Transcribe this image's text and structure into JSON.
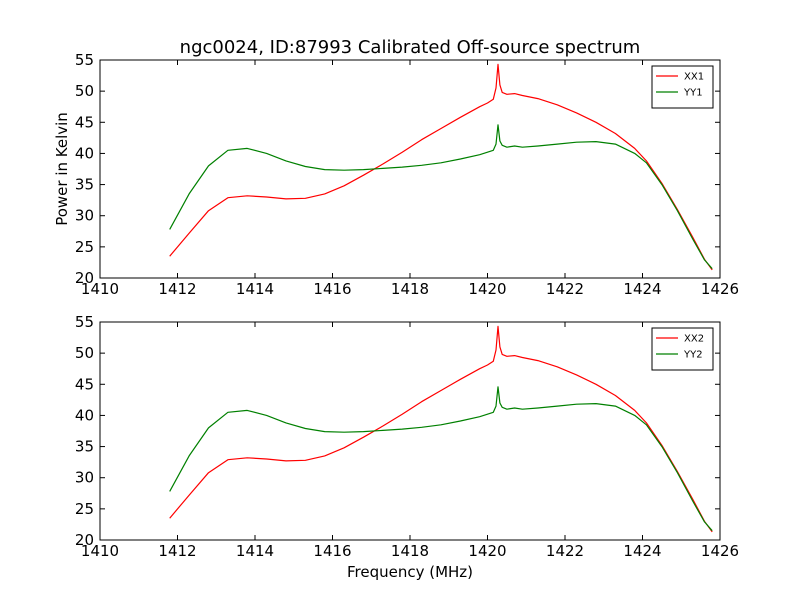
{
  "figure": {
    "title": "ngc0024, ID:87993 Calibrated Off-source spectrum",
    "ylabel_top": "Power in Kelvin",
    "xlabel_bottom": "Frequency (MHz)"
  },
  "chart_data": [
    {
      "type": "line",
      "title": "ngc0024, ID:87993 Calibrated Off-source spectrum",
      "xlabel": "",
      "ylabel": "Power in Kelvin",
      "xlim": [
        1410,
        1426
      ],
      "ylim": [
        20,
        55
      ],
      "xticks": [
        1410,
        1412,
        1414,
        1416,
        1418,
        1420,
        1422,
        1424,
        1426
      ],
      "yticks": [
        20,
        25,
        30,
        35,
        40,
        45,
        50,
        55
      ],
      "grid": false,
      "legend_position": "top-right",
      "series": [
        {
          "name": "XX1",
          "color": "#ff0000",
          "x": [
            1411.8,
            1412.3,
            1412.8,
            1413.3,
            1413.8,
            1414.3,
            1414.8,
            1415.3,
            1415.8,
            1416.3,
            1416.8,
            1417.3,
            1417.8,
            1418.3,
            1418.8,
            1419.3,
            1419.8,
            1420.0,
            1420.15,
            1420.22,
            1420.27,
            1420.32,
            1420.38,
            1420.5,
            1420.7,
            1420.9,
            1421.3,
            1421.8,
            1422.3,
            1422.8,
            1423.3,
            1423.8,
            1424.1,
            1424.5,
            1424.9,
            1425.3,
            1425.6,
            1425.8
          ],
          "y": [
            23.5,
            27.2,
            30.8,
            32.9,
            33.2,
            33.0,
            32.7,
            32.8,
            33.5,
            34.8,
            36.5,
            38.3,
            40.2,
            42.2,
            44.0,
            45.8,
            47.5,
            48.1,
            48.7,
            50.5,
            54.3,
            51.0,
            49.8,
            49.5,
            49.6,
            49.3,
            48.8,
            47.8,
            46.5,
            45.0,
            43.2,
            40.8,
            38.8,
            35.2,
            31.0,
            26.5,
            23.0,
            21.3
          ]
        },
        {
          "name": "YY1",
          "color": "#008000",
          "x": [
            1411.8,
            1412.3,
            1412.8,
            1413.3,
            1413.8,
            1414.3,
            1414.8,
            1415.3,
            1415.8,
            1416.3,
            1416.8,
            1417.3,
            1417.8,
            1418.3,
            1418.8,
            1419.3,
            1419.8,
            1420.0,
            1420.15,
            1420.22,
            1420.27,
            1420.32,
            1420.38,
            1420.5,
            1420.7,
            1420.9,
            1421.3,
            1421.8,
            1422.3,
            1422.8,
            1423.3,
            1423.8,
            1424.1,
            1424.5,
            1424.9,
            1425.3,
            1425.6,
            1425.8
          ],
          "y": [
            27.8,
            33.5,
            38.0,
            40.5,
            40.8,
            40.0,
            38.8,
            37.9,
            37.4,
            37.3,
            37.4,
            37.6,
            37.8,
            38.1,
            38.5,
            39.1,
            39.8,
            40.2,
            40.5,
            41.5,
            44.6,
            42.0,
            41.3,
            41.0,
            41.2,
            41.0,
            41.2,
            41.5,
            41.8,
            41.9,
            41.5,
            40.0,
            38.5,
            35.0,
            30.8,
            26.2,
            22.9,
            21.5
          ]
        }
      ]
    },
    {
      "type": "line",
      "title": "",
      "xlabel": "Frequency (MHz)",
      "ylabel": "",
      "xlim": [
        1410,
        1426
      ],
      "ylim": [
        20,
        55
      ],
      "xticks": [
        1410,
        1412,
        1414,
        1416,
        1418,
        1420,
        1422,
        1424,
        1426
      ],
      "yticks": [
        20,
        25,
        30,
        35,
        40,
        45,
        50,
        55
      ],
      "grid": false,
      "legend_position": "top-right",
      "series": [
        {
          "name": "XX2",
          "color": "#ff0000",
          "x": [
            1411.8,
            1412.3,
            1412.8,
            1413.3,
            1413.8,
            1414.3,
            1414.8,
            1415.3,
            1415.8,
            1416.3,
            1416.8,
            1417.3,
            1417.8,
            1418.3,
            1418.8,
            1419.3,
            1419.8,
            1420.0,
            1420.15,
            1420.22,
            1420.27,
            1420.32,
            1420.38,
            1420.5,
            1420.7,
            1420.9,
            1421.3,
            1421.8,
            1422.3,
            1422.8,
            1423.3,
            1423.8,
            1424.1,
            1424.5,
            1424.9,
            1425.3,
            1425.6,
            1425.8
          ],
          "y": [
            23.5,
            27.2,
            30.8,
            32.9,
            33.2,
            33.0,
            32.7,
            32.8,
            33.5,
            34.8,
            36.5,
            38.3,
            40.2,
            42.2,
            44.0,
            45.8,
            47.5,
            48.1,
            48.7,
            50.5,
            54.3,
            51.0,
            49.8,
            49.5,
            49.6,
            49.3,
            48.8,
            47.8,
            46.5,
            45.0,
            43.2,
            40.8,
            38.8,
            35.2,
            31.0,
            26.5,
            23.0,
            21.3
          ]
        },
        {
          "name": "YY2",
          "color": "#008000",
          "x": [
            1411.8,
            1412.3,
            1412.8,
            1413.3,
            1413.8,
            1414.3,
            1414.8,
            1415.3,
            1415.8,
            1416.3,
            1416.8,
            1417.3,
            1417.8,
            1418.3,
            1418.8,
            1419.3,
            1419.8,
            1420.0,
            1420.15,
            1420.22,
            1420.27,
            1420.32,
            1420.38,
            1420.5,
            1420.7,
            1420.9,
            1421.3,
            1421.8,
            1422.3,
            1422.8,
            1423.3,
            1423.8,
            1424.1,
            1424.5,
            1424.9,
            1425.3,
            1425.6,
            1425.8
          ],
          "y": [
            27.8,
            33.5,
            38.0,
            40.5,
            40.8,
            40.0,
            38.8,
            37.9,
            37.4,
            37.3,
            37.4,
            37.6,
            37.8,
            38.1,
            38.5,
            39.1,
            39.8,
            40.2,
            40.5,
            41.5,
            44.6,
            42.0,
            41.3,
            41.0,
            41.2,
            41.0,
            41.2,
            41.5,
            41.8,
            41.9,
            41.5,
            40.0,
            38.5,
            35.0,
            30.8,
            26.2,
            22.9,
            21.5
          ]
        }
      ]
    }
  ]
}
